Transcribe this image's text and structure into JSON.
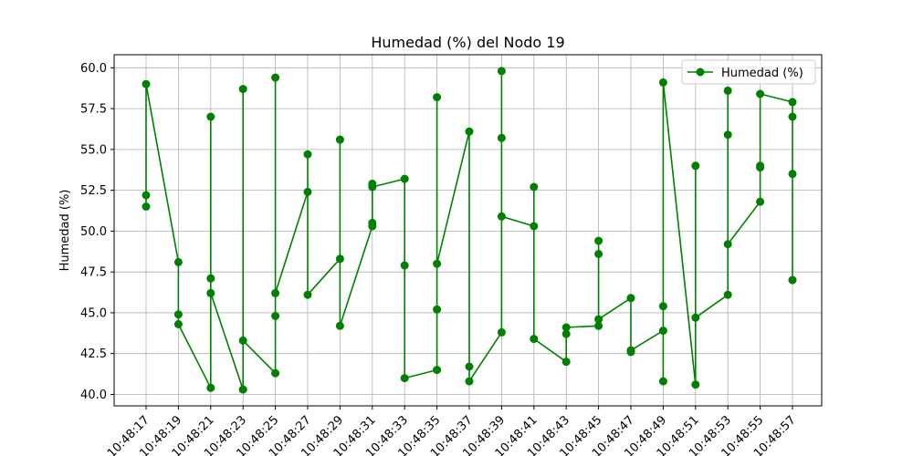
{
  "chart_data": {
    "type": "line",
    "title": "Humedad (%) del Nodo 19",
    "xlabel": "",
    "ylabel": "Humedad (%)",
    "ylim": [
      39.3,
      60.8
    ],
    "yticks": [
      40.0,
      42.5,
      45.0,
      47.5,
      50.0,
      52.5,
      55.0,
      57.5,
      60.0
    ],
    "ytick_labels": [
      "40.0",
      "42.5",
      "45.0",
      "47.5",
      "50.0",
      "52.5",
      "55.0",
      "57.5",
      "60.0"
    ],
    "categories": [
      "10:48:17",
      "10:48:19",
      "10:48:21",
      "10:48:23",
      "10:48:25",
      "10:48:27",
      "10:48:29",
      "10:48:31",
      "10:48:33",
      "10:48:35",
      "10:48:37",
      "10:48:39",
      "10:48:41",
      "10:48:43",
      "10:48:45",
      "10:48:47",
      "10:48:49",
      "10:48:51",
      "10:48:53",
      "10:48:55",
      "10:48:57"
    ],
    "grid": true,
    "legend_position": "top-right",
    "colors": {
      "series": "#008000",
      "grid": "#b0b0b0",
      "axis": "#000000"
    },
    "series": [
      {
        "name": "Humedad (%)",
        "points": [
          {
            "x": 0,
            "y": 51.5
          },
          {
            "x": 0,
            "y": 52.2
          },
          {
            "x": 0,
            "y": 59.0
          },
          {
            "x": 1,
            "y": 48.1
          },
          {
            "x": 1,
            "y": 44.9
          },
          {
            "x": 1,
            "y": 44.3
          },
          {
            "x": 2,
            "y": 40.4
          },
          {
            "x": 2,
            "y": 57.0
          },
          {
            "x": 2,
            "y": 47.1
          },
          {
            "x": 2,
            "y": 46.2
          },
          {
            "x": 3,
            "y": 40.3
          },
          {
            "x": 3,
            "y": 58.7
          },
          {
            "x": 3,
            "y": 43.3
          },
          {
            "x": 4,
            "y": 41.3
          },
          {
            "x": 4,
            "y": 44.8
          },
          {
            "x": 4,
            "y": 59.4
          },
          {
            "x": 4,
            "y": 46.2
          },
          {
            "x": 5,
            "y": 52.4
          },
          {
            "x": 5,
            "y": 54.7
          },
          {
            "x": 5,
            "y": 46.1
          },
          {
            "x": 6,
            "y": 48.3
          },
          {
            "x": 6,
            "y": 55.6
          },
          {
            "x": 6,
            "y": 44.2
          },
          {
            "x": 7,
            "y": 50.3
          },
          {
            "x": 7,
            "y": 50.5
          },
          {
            "x": 7,
            "y": 52.9
          },
          {
            "x": 7,
            "y": 52.7
          },
          {
            "x": 8,
            "y": 53.2
          },
          {
            "x": 8,
            "y": 47.9
          },
          {
            "x": 8,
            "y": 41.0
          },
          {
            "x": 9,
            "y": 41.5
          },
          {
            "x": 9,
            "y": 45.2
          },
          {
            "x": 9,
            "y": 58.2
          },
          {
            "x": 9,
            "y": 48.0
          },
          {
            "x": 10,
            "y": 56.1
          },
          {
            "x": 10,
            "y": 41.7
          },
          {
            "x": 10,
            "y": 40.8
          },
          {
            "x": 11,
            "y": 43.8
          },
          {
            "x": 11,
            "y": 59.8
          },
          {
            "x": 11,
            "y": 55.7
          },
          {
            "x": 11,
            "y": 50.9
          },
          {
            "x": 12,
            "y": 50.3
          },
          {
            "x": 12,
            "y": 52.7
          },
          {
            "x": 12,
            "y": 43.4
          },
          {
            "x": 13,
            "y": 42.0
          },
          {
            "x": 13,
            "y": 43.7
          },
          {
            "x": 13,
            "y": 44.1
          },
          {
            "x": 14,
            "y": 44.2
          },
          {
            "x": 14,
            "y": 49.4
          },
          {
            "x": 14,
            "y": 48.6
          },
          {
            "x": 14,
            "y": 44.6
          },
          {
            "x": 15,
            "y": 45.9
          },
          {
            "x": 15,
            "y": 42.6
          },
          {
            "x": 15,
            "y": 42.7
          },
          {
            "x": 16,
            "y": 43.9
          },
          {
            "x": 16,
            "y": 40.8
          },
          {
            "x": 16,
            "y": 45.4
          },
          {
            "x": 16,
            "y": 59.1
          },
          {
            "x": 17,
            "y": 40.6
          },
          {
            "x": 17,
            "y": 54.0
          },
          {
            "x": 17,
            "y": 44.7
          },
          {
            "x": 18,
            "y": 46.1
          },
          {
            "x": 18,
            "y": 58.6
          },
          {
            "x": 18,
            "y": 55.9
          },
          {
            "x": 18,
            "y": 49.2
          },
          {
            "x": 19,
            "y": 51.8
          },
          {
            "x": 19,
            "y": 54.0
          },
          {
            "x": 19,
            "y": 53.9
          },
          {
            "x": 19,
            "y": 58.4
          },
          {
            "x": 20,
            "y": 57.9
          },
          {
            "x": 20,
            "y": 57.0
          },
          {
            "x": 20,
            "y": 53.5
          },
          {
            "x": 20,
            "y": 47.0
          }
        ]
      }
    ]
  }
}
